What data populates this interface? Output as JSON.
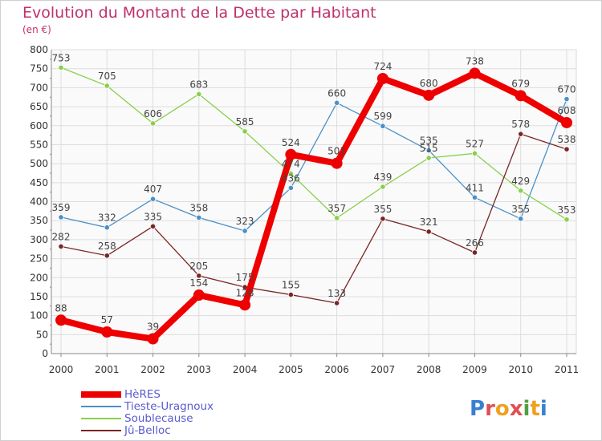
{
  "header": {
    "title": "Evolution du Montant de la Dette par Habitant",
    "unit": "(en €)"
  },
  "logo": {
    "text": "Proxiti",
    "colors": [
      "#3a7fd0",
      "#e05050",
      "#f0a020",
      "#e05050",
      "#50a040",
      "#f0a020",
      "#3a7fd0"
    ]
  },
  "chart_data": {
    "type": "line",
    "x": [
      "2000",
      "2001",
      "2002",
      "2003",
      "2004",
      "2005",
      "2006",
      "2007",
      "2008",
      "2009",
      "2010",
      "2011"
    ],
    "ylim": [
      0,
      800
    ],
    "yticks": [
      0,
      50,
      100,
      150,
      200,
      250,
      300,
      350,
      400,
      450,
      500,
      550,
      600,
      650,
      700,
      750,
      800
    ],
    "grid": true,
    "legend_position": "bottom-left",
    "series": [
      {
        "name": "Tieste-Uragnoux",
        "color": "#4a90c8",
        "values": [
          359,
          332,
          407,
          358,
          323,
          436,
          660,
          599,
          535,
          411,
          355,
          670
        ]
      },
      {
        "name": "Soublecause",
        "color": "#88d04a",
        "values": [
          753,
          705,
          606,
          683,
          585,
          474,
          357,
          439,
          515,
          527,
          429,
          353
        ]
      },
      {
        "name": "Jû-Belloc",
        "color": "#7a2525",
        "values": [
          282,
          258,
          335,
          205,
          175,
          155,
          133,
          355,
          321,
          266,
          578,
          538
        ]
      },
      {
        "name": "HèRES",
        "color": "#ee0000",
        "values": [
          88,
          57,
          39,
          154,
          128,
          524,
          501,
          724,
          680,
          738,
          679,
          608
        ]
      }
    ],
    "legend_order": [
      "HèRES",
      "Tieste-Uragnoux",
      "Soublecause",
      "Jû-Belloc"
    ]
  }
}
